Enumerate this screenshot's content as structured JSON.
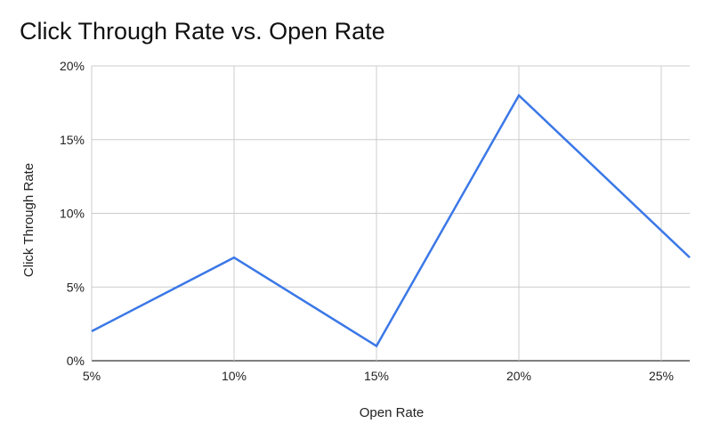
{
  "chart_data": {
    "type": "line",
    "title": "Click Through Rate vs. Open Rate",
    "xlabel": "Open Rate",
    "ylabel": "Click Through Rate",
    "x": [
      5,
      10,
      15,
      20,
      26
    ],
    "series": [
      {
        "values": [
          2,
          7,
          1,
          18,
          7
        ],
        "color": "#3b78e7"
      }
    ],
    "xlim": [
      5,
      26
    ],
    "ylim": [
      0,
      20
    ],
    "xticks": [
      5,
      10,
      15,
      20,
      25
    ],
    "yticks": [
      0,
      5,
      10,
      15,
      20
    ],
    "xtick_labels": [
      "5%",
      "10%",
      "15%",
      "20%",
      "25%"
    ],
    "ytick_labels": [
      "0%",
      "5%",
      "10%",
      "15%",
      "20%"
    ],
    "grid": true,
    "legend": "none"
  }
}
